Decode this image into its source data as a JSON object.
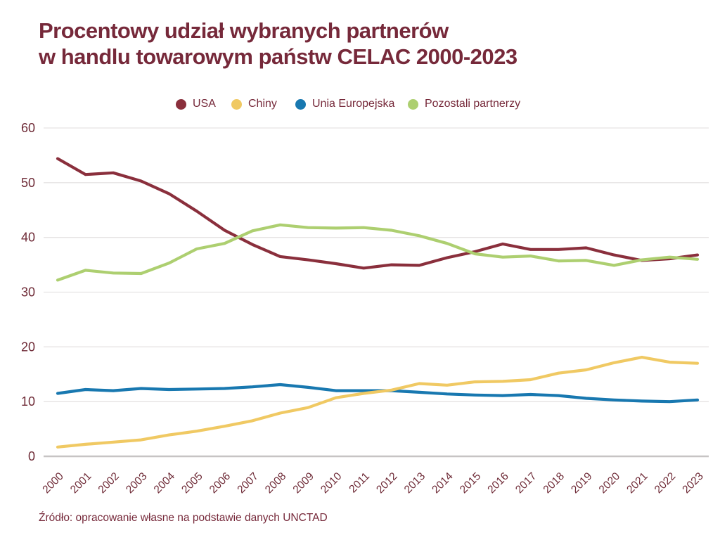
{
  "title": {
    "line1": "Procentowy udział wybranych partnerów",
    "line2": "w handlu towarowym państw CELAC 2000-2023"
  },
  "source": "Źródło: opracowanie własne na podstawie danych UNCTAD",
  "colors": {
    "text": "#76293A",
    "tick_label": "#6E2A36",
    "grid": "#E6E3E3",
    "axis": "#C7C4C4",
    "background": "#FFFFFF"
  },
  "chart_data": {
    "type": "line",
    "title": "Procentowy udział wybranych partnerów w handlu towarowym państw CELAC 2000-2023",
    "x": [
      2000,
      2001,
      2002,
      2003,
      2004,
      2005,
      2006,
      2007,
      2008,
      2009,
      2010,
      2011,
      2012,
      2013,
      2014,
      2015,
      2016,
      2017,
      2018,
      2019,
      2020,
      2021,
      2022,
      2023
    ],
    "series": [
      {
        "name": "USA",
        "color": "#8A2F3C",
        "values": [
          54.4,
          51.5,
          51.8,
          50.3,
          48.0,
          44.8,
          41.3,
          38.7,
          36.5,
          35.9,
          35.2,
          34.4,
          35.0,
          34.9,
          36.3,
          37.4,
          38.8,
          37.8,
          37.8,
          38.1,
          36.8,
          35.8,
          36.1,
          36.8
        ]
      },
      {
        "name": "Chiny",
        "color": "#F0C963",
        "values": [
          1.7,
          2.2,
          2.6,
          3.0,
          3.9,
          4.6,
          5.5,
          6.5,
          7.9,
          8.9,
          10.7,
          11.5,
          12.1,
          13.3,
          13.0,
          13.6,
          13.7,
          14.0,
          15.2,
          15.8,
          17.1,
          18.1,
          17.2,
          17.0
        ]
      },
      {
        "name": "Unia Europejska",
        "color": "#1878B0",
        "values": [
          11.5,
          12.2,
          12.0,
          12.4,
          12.2,
          12.3,
          12.4,
          12.7,
          13.1,
          12.6,
          12.0,
          12.0,
          12.0,
          11.7,
          11.4,
          11.2,
          11.1,
          11.3,
          11.1,
          10.6,
          10.3,
          10.1,
          10.0,
          10.3
        ]
      },
      {
        "name": "Pozostali partnerzy",
        "color": "#ADCF70",
        "values": [
          32.2,
          34.0,
          33.5,
          33.4,
          35.3,
          37.9,
          38.9,
          41.2,
          42.3,
          41.8,
          41.7,
          41.8,
          41.3,
          40.3,
          38.9,
          37.0,
          36.4,
          36.6,
          35.7,
          35.8,
          34.9,
          35.9,
          36.4,
          36.0
        ]
      }
    ],
    "ylim": [
      0,
      60
    ],
    "yticks": [
      0,
      10,
      20,
      30,
      40,
      50,
      60
    ],
    "xlabel": "",
    "ylabel": "",
    "grid": true,
    "legend_position": "top",
    "x_tick_rotation": -45
  },
  "legend_items": [
    {
      "label": "USA"
    },
    {
      "label": "Chiny"
    },
    {
      "label": "Unia Europejska"
    },
    {
      "label": "Pozostali partnerzy"
    }
  ]
}
